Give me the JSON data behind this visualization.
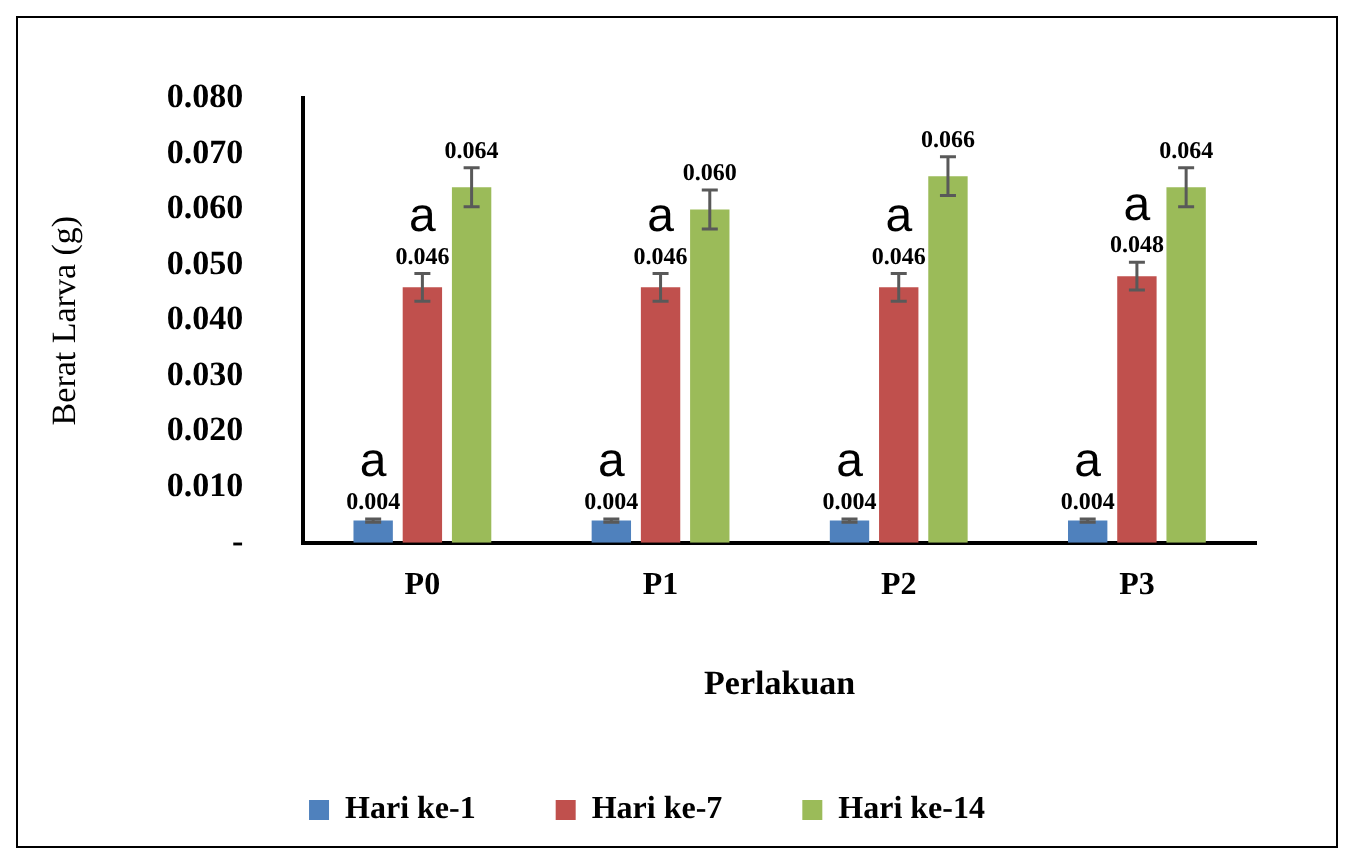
{
  "chart_data": {
    "type": "bar",
    "xlabel": "Perlakuan",
    "ylabel": "Berat Larva (g)",
    "categories": [
      "P0",
      "P1",
      "P2",
      "P3"
    ],
    "series": [
      {
        "name": "Hari ke-1",
        "color": "#4f81bd",
        "values": [
          0.004,
          0.004,
          0.004,
          0.004
        ],
        "errors": [
          0.0003,
          0.0003,
          0.0003,
          0.0003
        ],
        "value_labels": [
          "0.004",
          "0.004",
          "0.004",
          "0.004"
        ]
      },
      {
        "name": "Hari ke-7",
        "color": "#c0504d",
        "values": [
          0.046,
          0.046,
          0.046,
          0.048
        ],
        "errors": [
          0.0025,
          0.0025,
          0.0025,
          0.0025
        ],
        "value_labels": [
          "0.046",
          "0.046",
          "0.046",
          "0.048"
        ]
      },
      {
        "name": "Hari ke-14",
        "color": "#9bbb59",
        "values": [
          0.064,
          0.06,
          0.066,
          0.064
        ],
        "errors": [
          0.0035,
          0.0035,
          0.0035,
          0.0035
        ],
        "value_labels": [
          "0.064",
          "0.060",
          "0.066",
          "0.064"
        ]
      }
    ],
    "ylim": [
      0,
      0.08
    ],
    "yticks": [
      {
        "value": 0,
        "label": "-"
      },
      {
        "value": 0.01,
        "label": "0.010"
      },
      {
        "value": 0.02,
        "label": "0.020"
      },
      {
        "value": 0.03,
        "label": "0.030"
      },
      {
        "value": 0.04,
        "label": "0.040"
      },
      {
        "value": 0.05,
        "label": "0.050"
      },
      {
        "value": 0.06,
        "label": "0.060"
      },
      {
        "value": 0.07,
        "label": "0.070"
      },
      {
        "value": 0.08,
        "label": "0.080"
      }
    ],
    "annotations": [
      "a",
      "a",
      "a",
      "a",
      {
        "text": "a",
        "x": "P0",
        "y": 0.046
      },
      {
        "text": "a",
        "x": "P1",
        "y": 0.046
      },
      {
        "text": "a",
        "x": "P2",
        "y": 0.046
      },
      {
        "text": "a",
        "x": "P3",
        "y": 0.048
      }
    ],
    "grid": false,
    "legend": "bottom"
  }
}
